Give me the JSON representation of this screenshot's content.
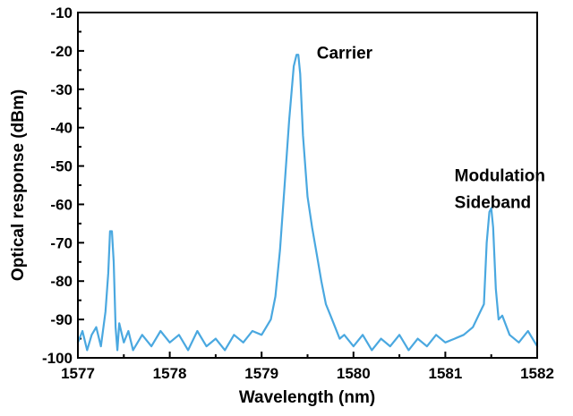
{
  "chart_data": {
    "type": "line",
    "title": "",
    "xlabel": "Wavelength (nm)",
    "ylabel": "Optical response (dBm)",
    "xlim": [
      1577,
      1582
    ],
    "ylim": [
      -100,
      -10
    ],
    "x_ticks": [
      1577,
      1578,
      1579,
      1580,
      1581,
      1582
    ],
    "y_ticks": [
      -10,
      -20,
      -30,
      -40,
      -50,
      -60,
      -70,
      -80,
      -90,
      -100
    ],
    "grid": false,
    "colors": {
      "line": "#4aa8e0"
    },
    "annotations": [
      {
        "text": "Carrier",
        "x": 1579.6,
        "y": -22
      },
      {
        "lines": [
          "Modulation",
          "Sideband"
        ],
        "x": 1581.1,
        "y": -54
      }
    ],
    "series": [
      {
        "x": [
          1577.0,
          1577.05,
          1577.1,
          1577.15,
          1577.2,
          1577.25,
          1577.3,
          1577.33,
          1577.35,
          1577.37,
          1577.39,
          1577.41,
          1577.43,
          1577.45,
          1577.5,
          1577.55,
          1577.6,
          1577.7,
          1577.8,
          1577.9,
          1578.0,
          1578.1,
          1578.2,
          1578.3,
          1578.4,
          1578.5,
          1578.6,
          1578.7,
          1578.8,
          1578.9,
          1579.0,
          1579.1,
          1579.15,
          1579.2,
          1579.25,
          1579.3,
          1579.35,
          1579.38,
          1579.4,
          1579.42,
          1579.45,
          1579.5,
          1579.55,
          1579.6,
          1579.65,
          1579.7,
          1579.75,
          1579.8,
          1579.85,
          1579.9,
          1580.0,
          1580.1,
          1580.2,
          1580.3,
          1580.4,
          1580.5,
          1580.6,
          1580.7,
          1580.8,
          1580.9,
          1581.0,
          1581.1,
          1581.2,
          1581.3,
          1581.38,
          1581.42,
          1581.45,
          1581.48,
          1581.5,
          1581.52,
          1581.55,
          1581.58,
          1581.62,
          1581.7,
          1581.8,
          1581.9,
          1582.0
        ],
        "y": [
          -96,
          -93,
          -98,
          -94,
          -92,
          -97,
          -88,
          -78,
          -67,
          -67,
          -75,
          -92,
          -98,
          -91,
          -96,
          -93,
          -98,
          -94,
          -97,
          -93,
          -96,
          -94,
          -98,
          -93,
          -97,
          -95,
          -98,
          -94,
          -96,
          -93,
          -94,
          -90,
          -84,
          -72,
          -55,
          -38,
          -24,
          -21,
          -21,
          -26,
          -42,
          -58,
          -66,
          -73,
          -80,
          -86,
          -89,
          -92,
          -95,
          -94,
          -97,
          -94,
          -98,
          -95,
          -97,
          -94,
          -98,
          -95,
          -97,
          -94,
          -96,
          -95,
          -94,
          -92,
          -88,
          -86,
          -70,
          -62,
          -61,
          -66,
          -82,
          -90,
          -89,
          -94,
          -96,
          -93,
          -97
        ]
      }
    ]
  }
}
